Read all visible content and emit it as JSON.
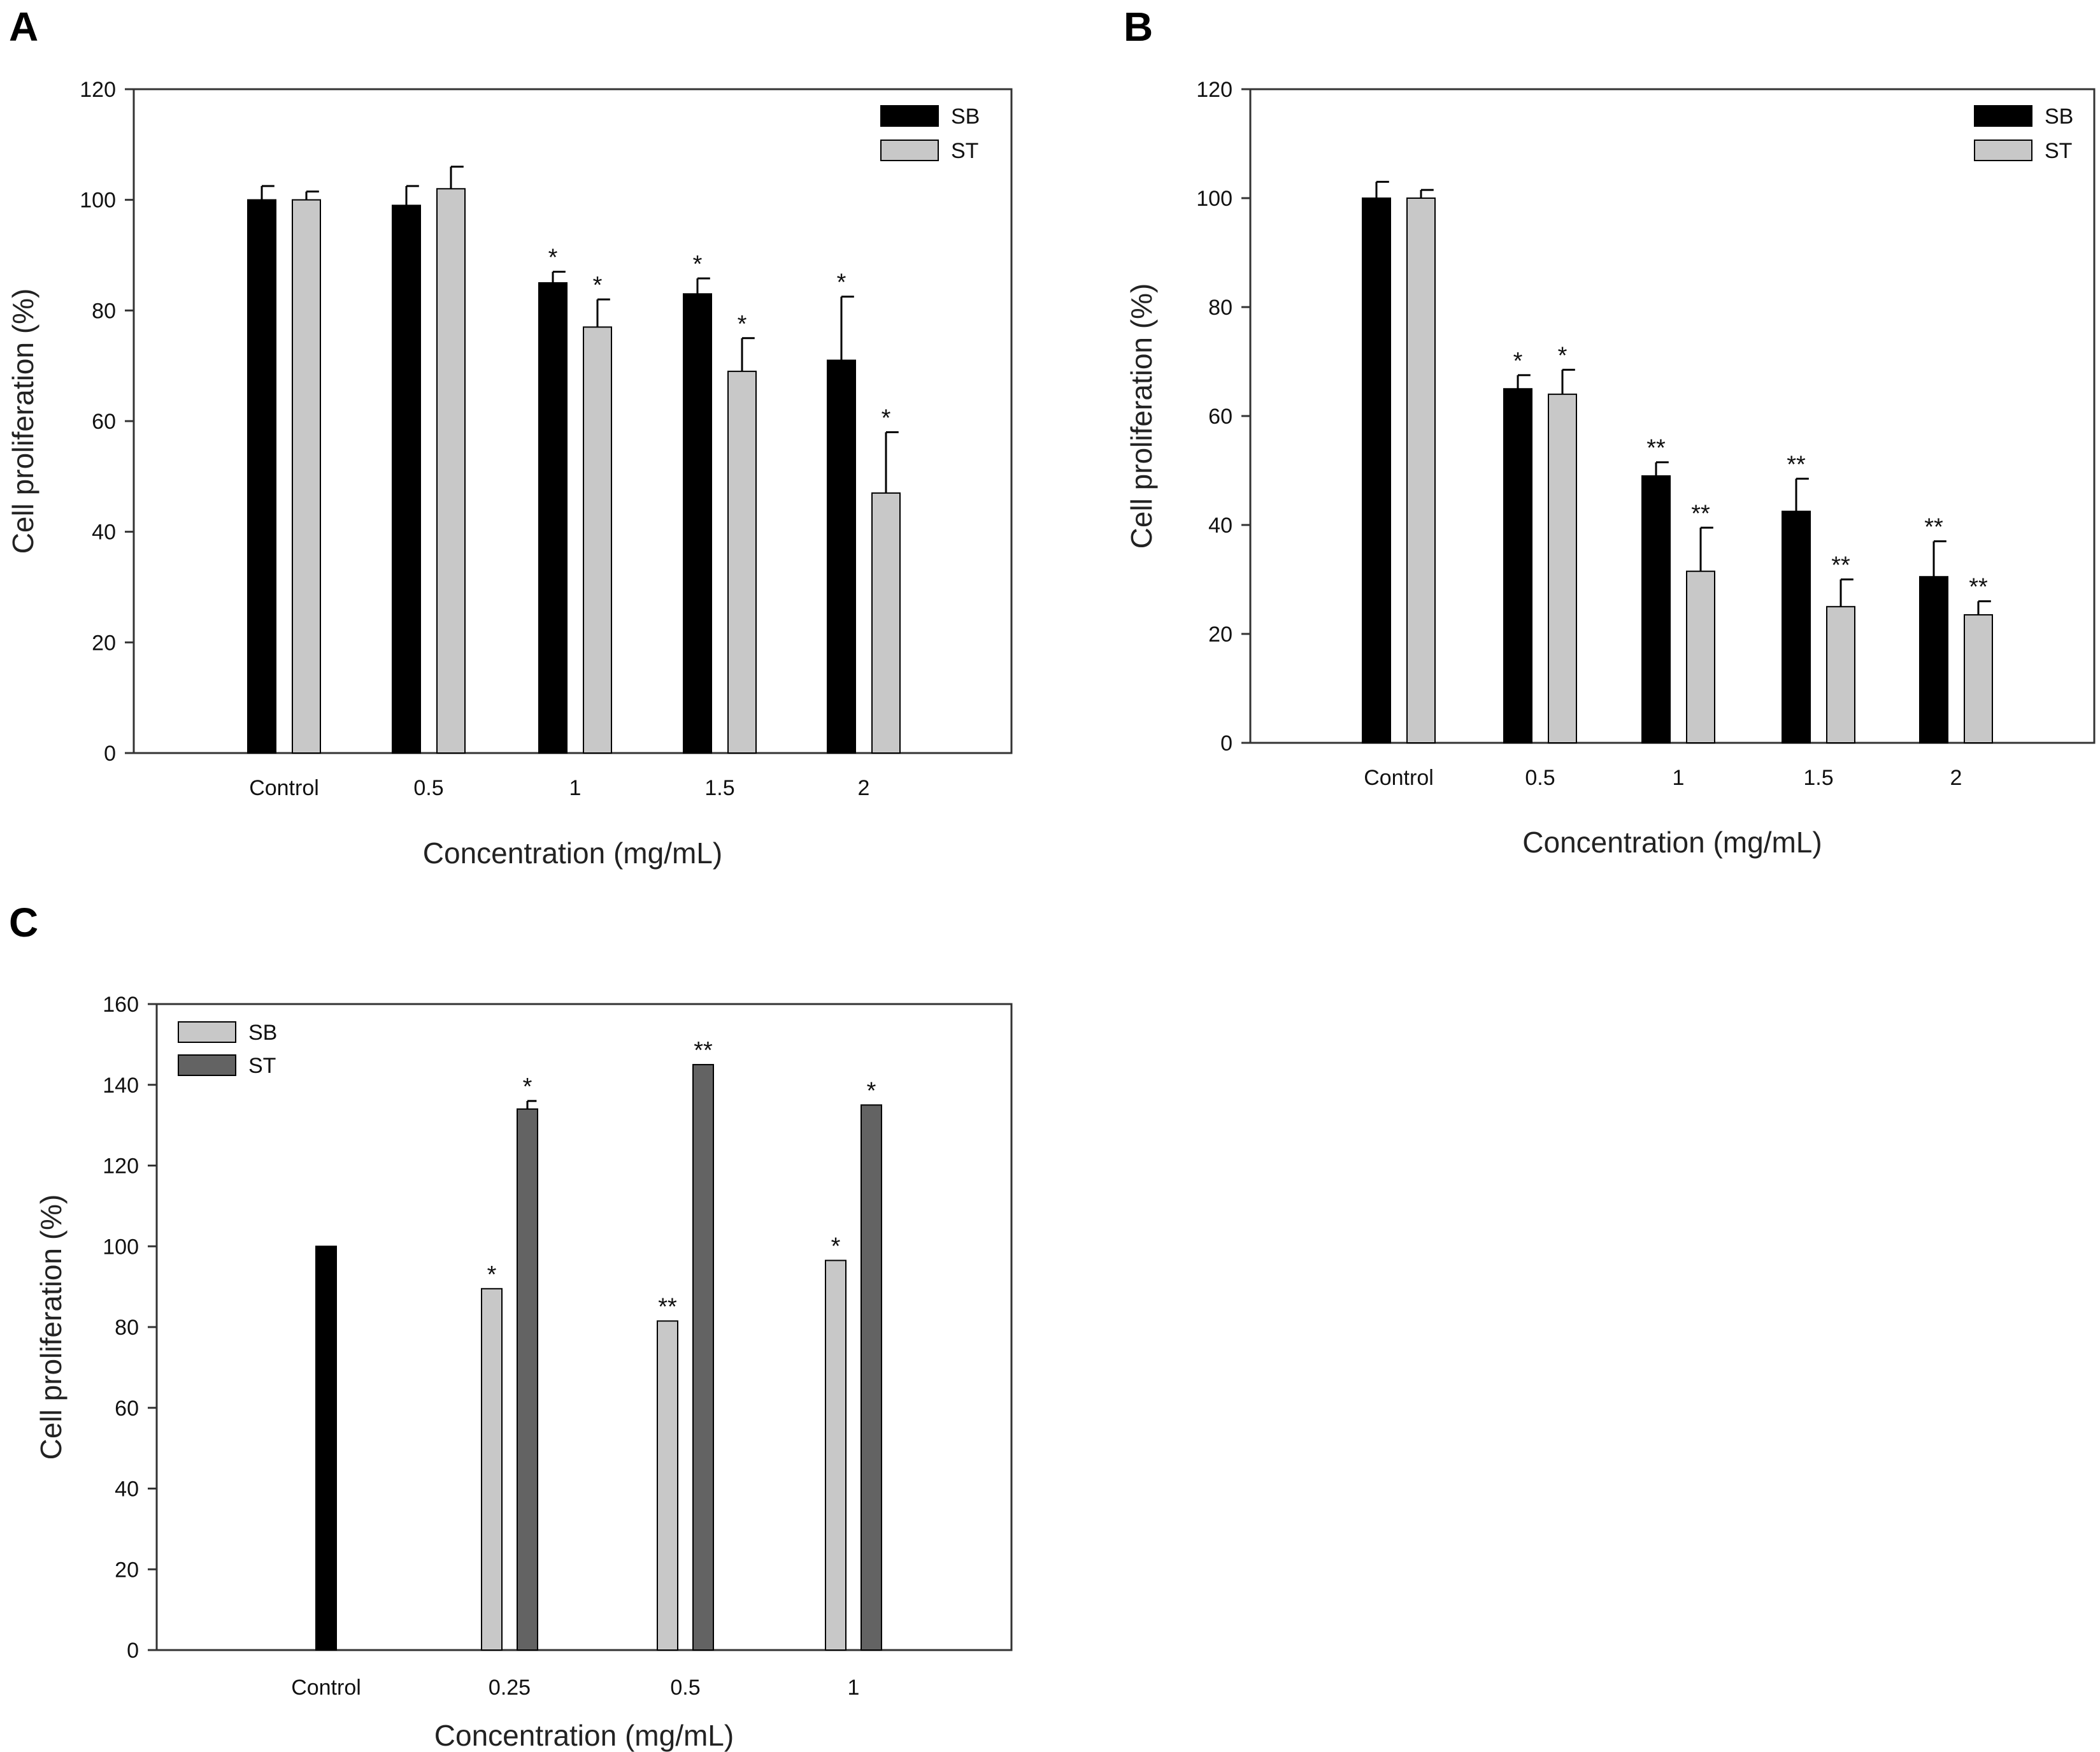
{
  "figure": {
    "panel_letters": [
      "A",
      "B",
      "C"
    ]
  },
  "chart_data": [
    {
      "panel": "A",
      "type": "bar",
      "title": "",
      "xlabel": "Concentration (mg/mL)",
      "ylabel": "Cell proliferation (%)",
      "ylim": [
        0,
        120
      ],
      "yticks": [
        0,
        20,
        40,
        60,
        80,
        100,
        120
      ],
      "categories": [
        "Control",
        "0.5",
        "1",
        "1.5",
        "2"
      ],
      "legend_position": "top-right",
      "series": [
        {
          "name": "SB",
          "color": "#000000",
          "values": [
            100,
            99,
            85,
            83,
            71
          ],
          "errors": [
            2.5,
            3.5,
            2,
            2.8,
            11.5
          ],
          "sig": [
            "",
            "",
            "*",
            "*",
            "*"
          ]
        },
        {
          "name": "ST",
          "color": "#c8c8c8",
          "values": [
            100,
            102,
            77,
            69,
            47
          ],
          "errors": [
            1.5,
            4,
            5,
            6,
            11
          ],
          "sig": [
            "",
            "",
            "*",
            "*",
            "*"
          ]
        }
      ]
    },
    {
      "panel": "B",
      "type": "bar",
      "title": "",
      "xlabel": "Concentration (mg/mL)",
      "ylabel": "Cell proliferation (%)",
      "ylim": [
        0,
        120
      ],
      "yticks": [
        0,
        20,
        40,
        60,
        80,
        100,
        120
      ],
      "categories": [
        "Control",
        "0.5",
        "1",
        "1.5",
        "2"
      ],
      "legend_position": "top-right",
      "series": [
        {
          "name": "SB",
          "color": "#000000",
          "values": [
            100,
            65,
            49,
            42.5,
            30.5
          ],
          "errors": [
            3,
            2.5,
            2.5,
            6,
            6.5
          ],
          "sig": [
            "",
            "*",
            "**",
            "**",
            "**"
          ]
        },
        {
          "name": "ST",
          "color": "#c8c8c8",
          "values": [
            100,
            64,
            31.5,
            25,
            23.5
          ],
          "errors": [
            1.5,
            4.5,
            8,
            5,
            2.5
          ],
          "sig": [
            "",
            "*",
            "**",
            "**",
            "**"
          ]
        }
      ]
    },
    {
      "panel": "C",
      "type": "bar",
      "title": "",
      "xlabel": "Concentration (mg/mL)",
      "ylabel": "Cell proliferation (%)",
      "ylim": [
        0,
        160
      ],
      "yticks": [
        0,
        20,
        40,
        60,
        80,
        100,
        120,
        140,
        160
      ],
      "categories": [
        "Control",
        "0.25",
        "0.5",
        "1"
      ],
      "legend_position": "top-left",
      "control_value": 100,
      "control_color": "#000000",
      "series": [
        {
          "name": "SB",
          "color": "#c8c8c8",
          "values": [
            null,
            89.5,
            81.5,
            96.5
          ],
          "errors": [
            0,
            0.5,
            0.5,
            0.5
          ],
          "sig": [
            "",
            "*",
            "**",
            "*"
          ]
        },
        {
          "name": "ST",
          "color": "#636363",
          "values": [
            null,
            134,
            145,
            135
          ],
          "errors": [
            0,
            2,
            0.5,
            0.5
          ],
          "sig": [
            "",
            "*",
            "**",
            "*"
          ]
        }
      ]
    }
  ]
}
